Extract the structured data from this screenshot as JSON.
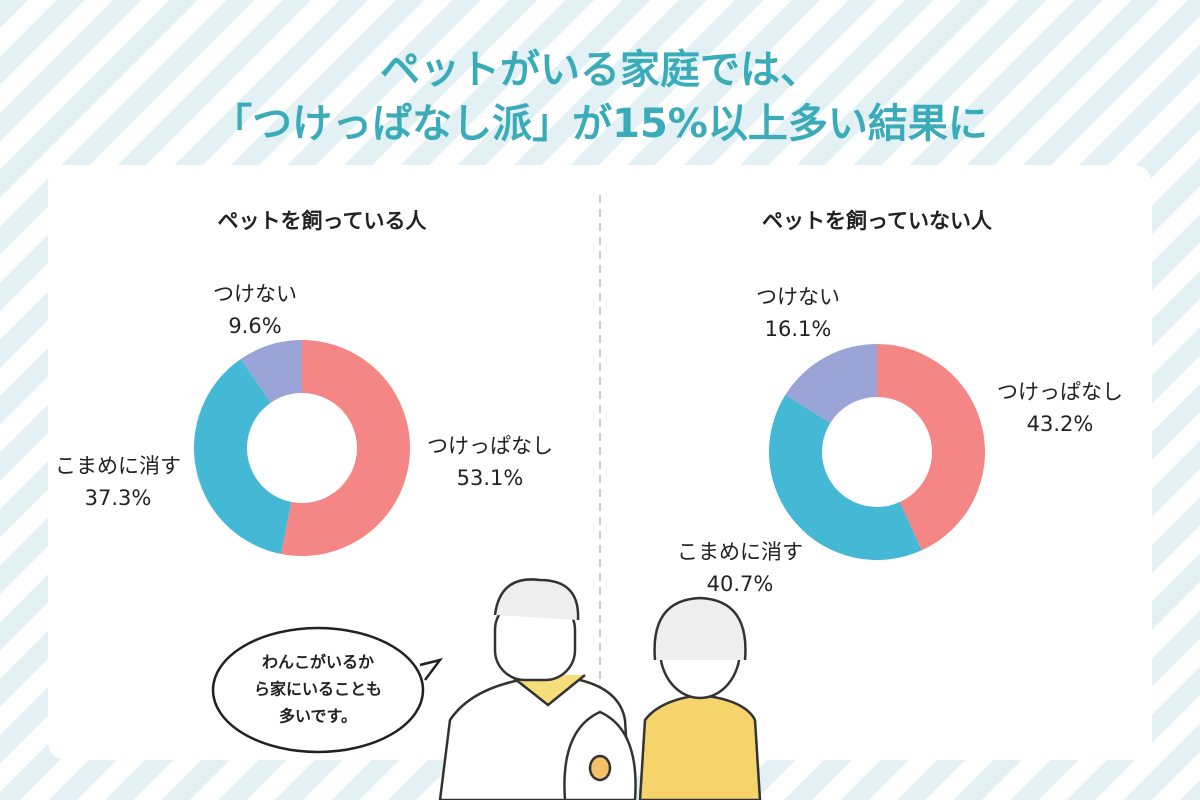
{
  "title": [
    "ペットがいる家庭では、",
    "「つけっぱなし派」が15%以上多い結果に"
  ],
  "chart_data": [
    {
      "type": "pie",
      "title": "ペットを飼っている人",
      "categories": [
        "つけっぱなし",
        "こまめに消す",
        "つけない"
      ],
      "values": [
        53.1,
        37.3,
        9.6
      ],
      "value_labels": [
        "53.1%",
        "37.3%",
        "9.6%"
      ],
      "colors": [
        "#f48686",
        "#45b8d6",
        "#9ba4d6"
      ]
    },
    {
      "type": "pie",
      "title": "ペットを飼っていない人",
      "categories": [
        "つけっぱなし",
        "こまめに消す",
        "つけない"
      ],
      "values": [
        43.2,
        40.7,
        16.1
      ],
      "value_labels": [
        "43.2%",
        "40.7%",
        "16.1%"
      ],
      "colors": [
        "#f48686",
        "#45b8d6",
        "#9ba4d6"
      ]
    }
  ],
  "speech_bubble": [
    "わんこがいるか",
    "ら家にいることも",
    "多いです。"
  ]
}
